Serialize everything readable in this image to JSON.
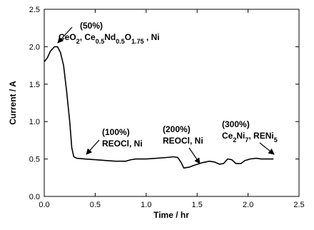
{
  "chart_data": {
    "type": "line",
    "xlabel": "Time / hr",
    "ylabel": "Current / A",
    "x": [
      0,
      0.03,
      0.06,
      0.1,
      0.13,
      0.16,
      0.19,
      0.22,
      0.25,
      0.27,
      0.29,
      0.32,
      0.4,
      0.5,
      0.6,
      0.7,
      0.8,
      0.85,
      0.9,
      1.0,
      1.1,
      1.2,
      1.27,
      1.31,
      1.34,
      1.37,
      1.42,
      1.48,
      1.55,
      1.62,
      1.67,
      1.72,
      1.76,
      1.8,
      1.84,
      1.88,
      1.93,
      1.97,
      2.02,
      2.08,
      2.13,
      2.2,
      2.25
    ],
    "series": [
      {
        "name": "Current",
        "color": "#000000",
        "values": [
          1.8,
          1.85,
          1.94,
          2.0,
          2.0,
          1.92,
          1.75,
          1.4,
          1.0,
          0.65,
          0.53,
          0.51,
          0.5,
          0.49,
          0.48,
          0.47,
          0.47,
          0.49,
          0.5,
          0.5,
          0.51,
          0.52,
          0.53,
          0.52,
          0.46,
          0.38,
          0.39,
          0.42,
          0.45,
          0.47,
          0.46,
          0.43,
          0.44,
          0.5,
          0.49,
          0.44,
          0.44,
          0.48,
          0.5,
          0.51,
          0.5,
          0.5,
          0.5
        ]
      }
    ],
    "xlim": [
      0,
      2.5
    ],
    "ylim": [
      0,
      2.5
    ],
    "xticks": [
      {
        "value": 0,
        "label": "0.0"
      },
      {
        "value": 0.5,
        "label": "0.5"
      },
      {
        "value": 1,
        "label": "1.0"
      },
      {
        "value": 1.5,
        "label": "1.5"
      },
      {
        "value": 2,
        "label": "2.0"
      },
      {
        "value": 2.5,
        "label": "2.5"
      }
    ],
    "yticks": [
      {
        "value": 0,
        "label": "0.0"
      },
      {
        "value": 0.5,
        "label": "0.5"
      },
      {
        "value": 1,
        "label": "1.0"
      },
      {
        "value": 1.5,
        "label": "1.5"
      },
      {
        "value": 2,
        "label": "2.0"
      },
      {
        "value": 2.5,
        "label": "2.5"
      }
    ],
    "annotations": [
      {
        "lines": [
          [
            {
              "text": "(50%)"
            }
          ],
          [
            {
              "text": "CeO"
            },
            {
              "text": "2",
              "sub": true
            },
            {
              "text": ", Ce"
            },
            {
              "text": "0.5",
              "sub": true
            },
            {
              "text": "Nd"
            },
            {
              "text": "0.5",
              "sub": true
            },
            {
              "text": "O"
            },
            {
              "text": "1.75",
              "sub": true
            },
            {
              "text": " , Ni"
            }
          ]
        ]
      },
      {
        "lines": [
          [
            {
              "text": "(100%)"
            }
          ],
          [
            {
              "text": "REOCl, Ni"
            }
          ]
        ]
      },
      {
        "lines": [
          [
            {
              "text": "(200%)"
            }
          ],
          [
            {
              "text": "REOCl, Ni"
            }
          ]
        ]
      },
      {
        "lines": [
          [
            {
              "text": "(300%)"
            }
          ],
          [
            {
              "text": "Ce"
            },
            {
              "text": "2",
              "sub": true
            },
            {
              "text": "Ni"
            },
            {
              "text": "7",
              "sub": true
            },
            {
              "text": ", RENi"
            },
            {
              "text": "5",
              "sub": true
            }
          ]
        ]
      }
    ]
  }
}
